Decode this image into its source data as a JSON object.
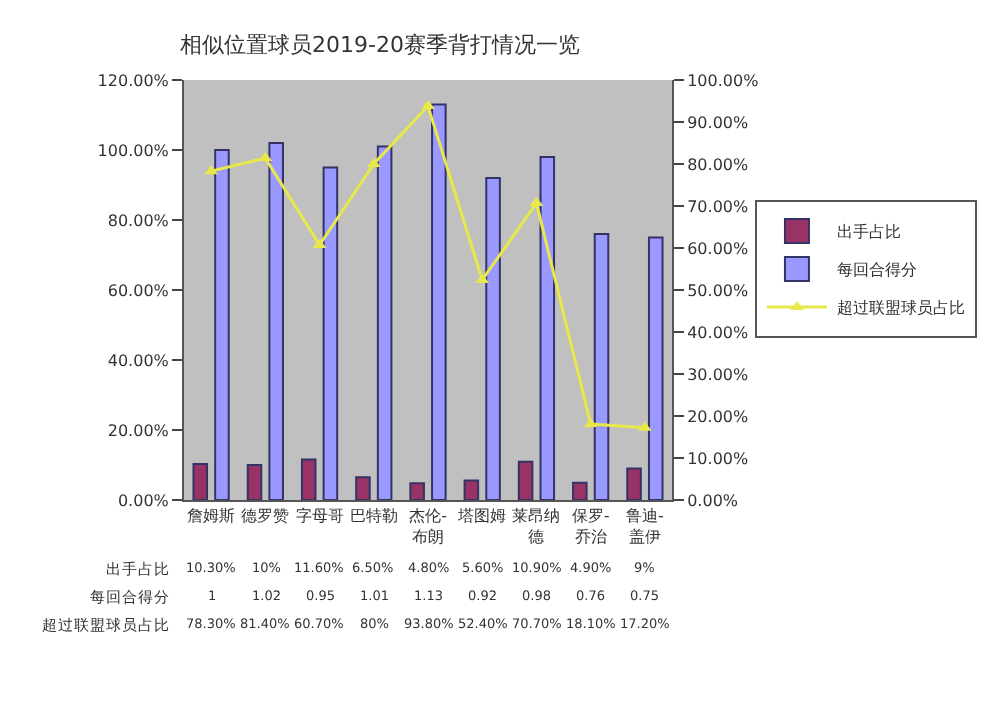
{
  "chart_data": {
    "type": "bar",
    "title": "相似位置球员2019-20赛季背打情况一览",
    "categories": [
      "詹姆斯",
      "德罗赞",
      "字母哥",
      "巴特勒",
      "杰伦-布朗",
      "塔图姆",
      "莱昂纳德",
      "保罗-乔治",
      "鲁迪-盖伊"
    ],
    "series": [
      {
        "name": "出手占比",
        "color": "#993366",
        "values": [
          0.103,
          0.1,
          0.116,
          0.065,
          0.048,
          0.056,
          0.109,
          0.049,
          0.09
        ],
        "value_labels": [
          "10.30%",
          "10%",
          "11.60%",
          "6.50%",
          "4.80%",
          "5.60%",
          "10.90%",
          "4.90%",
          "9%"
        ]
      },
      {
        "name": "每回合得分",
        "color": "#9999ff",
        "values": [
          1,
          1.02,
          0.95,
          1.01,
          1.13,
          0.92,
          0.98,
          0.76,
          0.75
        ],
        "value_labels": [
          "1",
          "1.02",
          "0.95",
          "1.01",
          "1.13",
          "0.92",
          "0.98",
          "0.76",
          "0.75"
        ]
      },
      {
        "name": "超过联盟球员占比",
        "type": "line",
        "axis": "y2",
        "color": "#e8e84a",
        "marker": "triangle",
        "values": [
          0.783,
          0.814,
          0.607,
          0.8,
          0.938,
          0.524,
          0.707,
          0.181,
          0.172
        ],
        "value_labels": [
          "78.30%",
          "81.40%",
          "60.70%",
          "80%",
          "93.80%",
          "52.40%",
          "70.70%",
          "18.10%",
          "17.20%"
        ]
      }
    ],
    "ylim": [
      0,
      1.2
    ],
    "yticks": [
      {
        "value": 0,
        "label": "0.00%"
      },
      {
        "value": 0.2,
        "label": "20.00%"
      },
      {
        "value": 0.4,
        "label": "40.00%"
      },
      {
        "value": 0.6,
        "label": "60.00%"
      },
      {
        "value": 0.8,
        "label": "80.00%"
      },
      {
        "value": 1.0,
        "label": "100.00%"
      },
      {
        "value": 1.2,
        "label": "120.00%"
      }
    ],
    "y2lim": [
      0,
      1
    ],
    "y2ticks": [
      {
        "value": 0,
        "label": "0.00%"
      },
      {
        "value": 0.1,
        "label": "10.00%"
      },
      {
        "value": 0.2,
        "label": "20.00%"
      },
      {
        "value": 0.3,
        "label": "30.00%"
      },
      {
        "value": 0.4,
        "label": "40.00%"
      },
      {
        "value": 0.5,
        "label": "50.00%"
      },
      {
        "value": 0.6,
        "label": "60.00%"
      },
      {
        "value": 0.7,
        "label": "70.00%"
      },
      {
        "value": 0.8,
        "label": "80.00%"
      },
      {
        "value": 0.9,
        "label": "90.00%"
      },
      {
        "value": 1.0,
        "label": "100.00%"
      }
    ],
    "grid": false,
    "legend": "right"
  }
}
